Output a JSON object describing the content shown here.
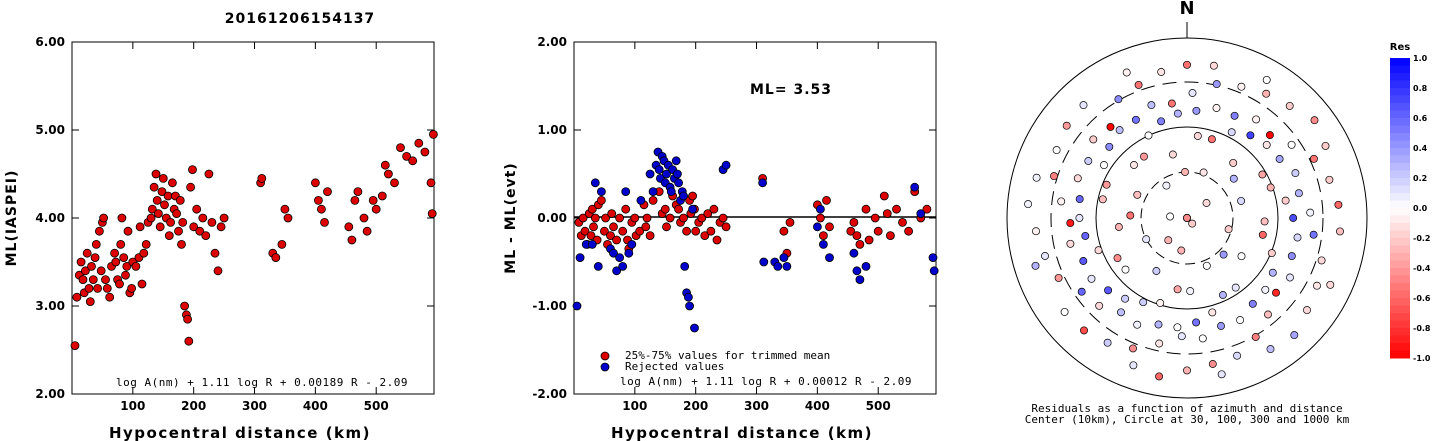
{
  "header": {
    "event_id": "20161206154137"
  },
  "panel1": {
    "ylabel": "ML(IASPEI)",
    "xlabel": "Hypocentral distance (km)",
    "formula": "log A(nm) + 1.11 log R + 0.00189 R - 2.09",
    "yticks": [
      "6.00",
      "5.00",
      "4.00",
      "3.00",
      "2.00"
    ],
    "xticks": [
      "100",
      "200",
      "300",
      "400",
      "500"
    ]
  },
  "panel2": {
    "ylabel": "ML - ML(evt)",
    "xlabel": "Hypocentral distance (km)",
    "ml_text": "ML= 3.53",
    "legend_trimmed": "25%-75% values for trimmed mean",
    "legend_rejected": "Rejected values",
    "formula": "log A(nm) + 1.11 log R + 0.00012 R - 2.09",
    "yticks": [
      "2.00",
      "1.00",
      "0.00",
      "-1.00",
      "-2.00"
    ],
    "xticks": [
      "100",
      "200",
      "300",
      "400",
      "500"
    ]
  },
  "panel3": {
    "north": "N",
    "caption1": "Residuals as a function of azimuth and distance",
    "caption2": "Center (10km), Circle at 30, 100, 300 and 1000 km",
    "colorbar_title": "Res",
    "colorbar_ticks": [
      "1.0",
      "0.8",
      "0.6",
      "0.4",
      "0.2",
      "0.0",
      "-0.2",
      "-0.4",
      "-0.6",
      "-0.8",
      "-1.0"
    ]
  },
  "colors": {
    "trimmed": "#dd0000",
    "rejected": "#0000cc",
    "positive": "#0000ff",
    "negative": "#ff0000"
  },
  "chart_data": [
    {
      "type": "scatter",
      "xlabel": "Hypocentral distance (km)",
      "ylabel": "ML(IASPEI)",
      "xlim": [
        0,
        595
      ],
      "ylim": [
        2,
        6
      ],
      "series": [
        {
          "x": [
            5,
            8,
            12,
            15,
            18,
            20,
            22,
            25,
            28,
            30,
            32,
            35,
            38,
            40,
            42,
            45,
            48,
            50,
            52,
            55,
            58,
            62,
            65,
            70,
            72,
            75,
            78,
            80,
            82,
            85,
            88,
            90,
            92,
            95,
            98,
            100,
            105,
            110,
            112,
            115,
            118,
            122,
            125,
            130,
            132,
            135,
            138,
            140,
            142,
            145,
            148,
            150,
            152,
            155,
            158,
            160,
            162,
            165,
            168,
            170,
            172,
            175,
            178,
            180,
            182,
            185,
            188,
            190,
            192,
            195,
            198,
            200,
            205,
            210,
            215,
            220,
            225,
            230,
            235,
            240,
            245,
            250,
            310,
            312,
            330,
            335,
            345,
            350,
            355,
            400,
            405,
            410,
            415,
            420,
            455,
            460,
            465,
            470,
            480,
            485,
            495,
            500,
            510,
            515,
            520,
            530,
            540,
            550,
            560,
            570,
            580,
            590,
            592,
            594
          ],
          "y": [
            2.55,
            3.1,
            3.35,
            3.5,
            3.3,
            3.15,
            3.4,
            3.6,
            3.2,
            3.05,
            3.45,
            3.3,
            3.55,
            3.7,
            3.2,
            3.85,
            3.4,
            3.95,
            4.0,
            3.3,
            3.2,
            3.1,
            3.45,
            3.6,
            3.5,
            3.3,
            3.25,
            3.7,
            4.0,
            3.55,
            3.35,
            3.45,
            3.85,
            3.15,
            3.2,
            3.5,
            3.45,
            3.55,
            3.9,
            3.25,
            3.6,
            3.7,
            3.95,
            4.0,
            4.1,
            4.35,
            4.5,
            4.2,
            4.05,
            3.9,
            4.3,
            4.45,
            4.15,
            4.0,
            4.25,
            3.8,
            3.95,
            4.4,
            4.1,
            4.25,
            4.05,
            3.85,
            4.2,
            3.7,
            3.95,
            3.0,
            2.9,
            2.85,
            2.6,
            4.35,
            4.55,
            3.9,
            4.1,
            3.85,
            4.0,
            3.8,
            4.5,
            3.95,
            3.6,
            3.4,
            3.9,
            4.0,
            4.4,
            4.45,
            3.6,
            3.55,
            3.7,
            4.1,
            4.0,
            4.4,
            4.2,
            4.1,
            3.95,
            4.3,
            3.9,
            3.75,
            4.2,
            4.3,
            4.0,
            3.85,
            4.2,
            4.1,
            4.25,
            4.6,
            4.5,
            4.4,
            4.8,
            4.7,
            4.65,
            4.85,
            4.75,
            4.4,
            4.05,
            4.95
          ]
        }
      ]
    },
    {
      "type": "scatter",
      "xlabel": "Hypocentral distance (km)",
      "ylabel": "ML - ML(evt)",
      "xlim": [
        0,
        595
      ],
      "ylim": [
        -2,
        2
      ],
      "ml_evt": 3.53,
      "series": [
        {
          "name": "25%-75% values for trimmed mean",
          "x": [
            8,
            12,
            15,
            18,
            22,
            25,
            28,
            30,
            32,
            35,
            38,
            40,
            45,
            50,
            52,
            55,
            60,
            62,
            65,
            70,
            75,
            80,
            85,
            88,
            90,
            95,
            100,
            102,
            108,
            115,
            118,
            120,
            125,
            130,
            140,
            145,
            150,
            152,
            158,
            162,
            168,
            172,
            175,
            180,
            185,
            190,
            192,
            195,
            198,
            200,
            205,
            210,
            215,
            220,
            225,
            230,
            235,
            240,
            245,
            250,
            310,
            345,
            350,
            355,
            400,
            405,
            410,
            415,
            420,
            455,
            460,
            465,
            470,
            480,
            485,
            495,
            500,
            510,
            515,
            520,
            530,
            540,
            550,
            560,
            570,
            580
          ],
          "y": [
            -0.05,
            -0.2,
            0.0,
            -0.15,
            -0.3,
            0.05,
            -0.2,
            0.1,
            -0.1,
            0.0,
            -0.25,
            0.15,
            0.2,
            -0.15,
            0.0,
            -0.3,
            -0.2,
            0.05,
            -0.1,
            -0.25,
            0.0,
            -0.15,
            0.1,
            -0.25,
            -0.35,
            -0.05,
            0.0,
            -0.2,
            -0.15,
            0.15,
            -0.1,
            0.0,
            -0.2,
            0.2,
            0.3,
            0.05,
            0.1,
            -0.1,
            0.0,
            0.25,
            0.15,
            0.1,
            -0.05,
            0.0,
            -0.15,
            0.2,
            0.05,
            0.25,
            0.1,
            -0.15,
            -0.05,
            0.0,
            -0.2,
            0.05,
            -0.15,
            0.1,
            -0.25,
            -0.05,
            0.0,
            -0.1,
            0.45,
            -0.15,
            -0.4,
            -0.05,
            0.15,
            0.0,
            -0.2,
            0.2,
            -0.1,
            -0.15,
            -0.05,
            -0.2,
            -0.3,
            0.1,
            -0.25,
            0.0,
            -0.15,
            0.25,
            0.05,
            -0.2,
            0.1,
            -0.05,
            -0.15,
            0.3,
            0.0,
            0.1
          ]
        },
        {
          "name": "Rejected values",
          "x": [
            5,
            10,
            20,
            30,
            35,
            40,
            45,
            60,
            65,
            70,
            75,
            80,
            85,
            90,
            95,
            110,
            125,
            130,
            135,
            138,
            140,
            142,
            145,
            148,
            150,
            152,
            155,
            158,
            160,
            162,
            165,
            168,
            170,
            172,
            175,
            178,
            180,
            182,
            185,
            188,
            190,
            195,
            198,
            245,
            250,
            310,
            312,
            330,
            335,
            345,
            350,
            400,
            405,
            410,
            420,
            460,
            465,
            470,
            480,
            560,
            570,
            590,
            592
          ],
          "y": [
            -1.0,
            -0.45,
            -0.3,
            -0.3,
            0.4,
            -0.55,
            0.3,
            -0.35,
            -0.4,
            -0.6,
            -0.45,
            -0.55,
            0.3,
            -0.4,
            -0.3,
            0.2,
            0.5,
            0.3,
            0.6,
            0.75,
            0.55,
            0.45,
            0.7,
            0.65,
            0.4,
            0.5,
            0.6,
            0.35,
            0.3,
            0.55,
            0.45,
            0.65,
            0.5,
            0.4,
            0.2,
            0.3,
            0.25,
            -0.55,
            -0.85,
            -0.9,
            -1.0,
            0.1,
            -1.25,
            0.55,
            0.6,
            0.4,
            -0.5,
            -0.5,
            -0.55,
            -0.45,
            -0.55,
            -0.1,
            0.1,
            -0.3,
            -0.45,
            -0.4,
            -0.6,
            -0.7,
            -0.55,
            0.35,
            0.05,
            -0.45,
            -0.6
          ]
        }
      ]
    }
  ]
}
